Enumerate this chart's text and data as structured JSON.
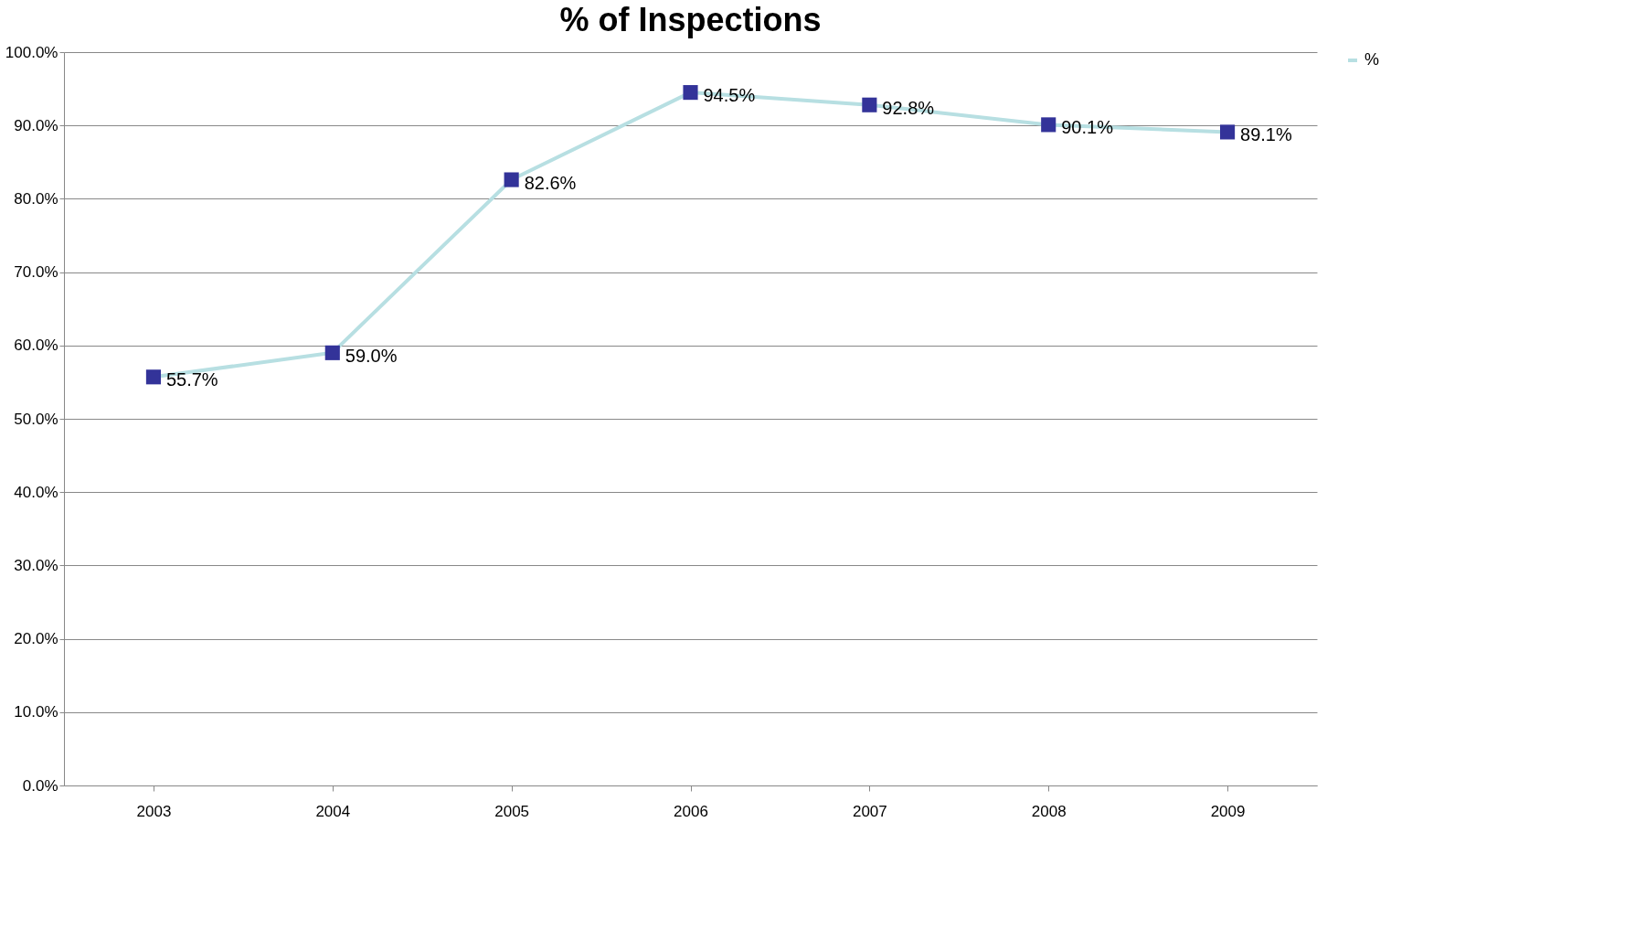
{
  "chart_data": {
    "type": "line",
    "title": "% of Inspections",
    "categories": [
      "2003",
      "2004",
      "2005",
      "2006",
      "2007",
      "2008",
      "2009"
    ],
    "series": [
      {
        "name": "%",
        "color": "#b7dfe2",
        "colors": [
          "#333399",
          "#333399",
          "#333399",
          "#333399",
          "#333399",
          "#333399",
          "#333399"
        ],
        "values": [
          55.7,
          59.0,
          82.6,
          94.5,
          92.8,
          90.1,
          89.1
        ],
        "value_labels": [
          "55.7%",
          "59.0%",
          "82.6%",
          "94.5%",
          "92.8%",
          "90.1%",
          "89.1%"
        ]
      }
    ],
    "ylim": [
      0,
      100
    ],
    "yticks": [
      {
        "value": 0,
        "label": "0.0%"
      },
      {
        "value": 10,
        "label": "10.0%"
      },
      {
        "value": 20,
        "label": "20.0%"
      },
      {
        "value": 30,
        "label": "30.0%"
      },
      {
        "value": 40,
        "label": "40.0%"
      },
      {
        "value": 50,
        "label": "50.0%"
      },
      {
        "value": 60,
        "label": "60.0%"
      },
      {
        "value": 70,
        "label": "70.0%"
      },
      {
        "value": 80,
        "label": "80.0%"
      },
      {
        "value": 90,
        "label": "90.0%"
      },
      {
        "value": 100,
        "label": "100.0%"
      }
    ],
    "grid": "y",
    "legend": "right",
    "marker": "square",
    "line_style": "solid"
  }
}
